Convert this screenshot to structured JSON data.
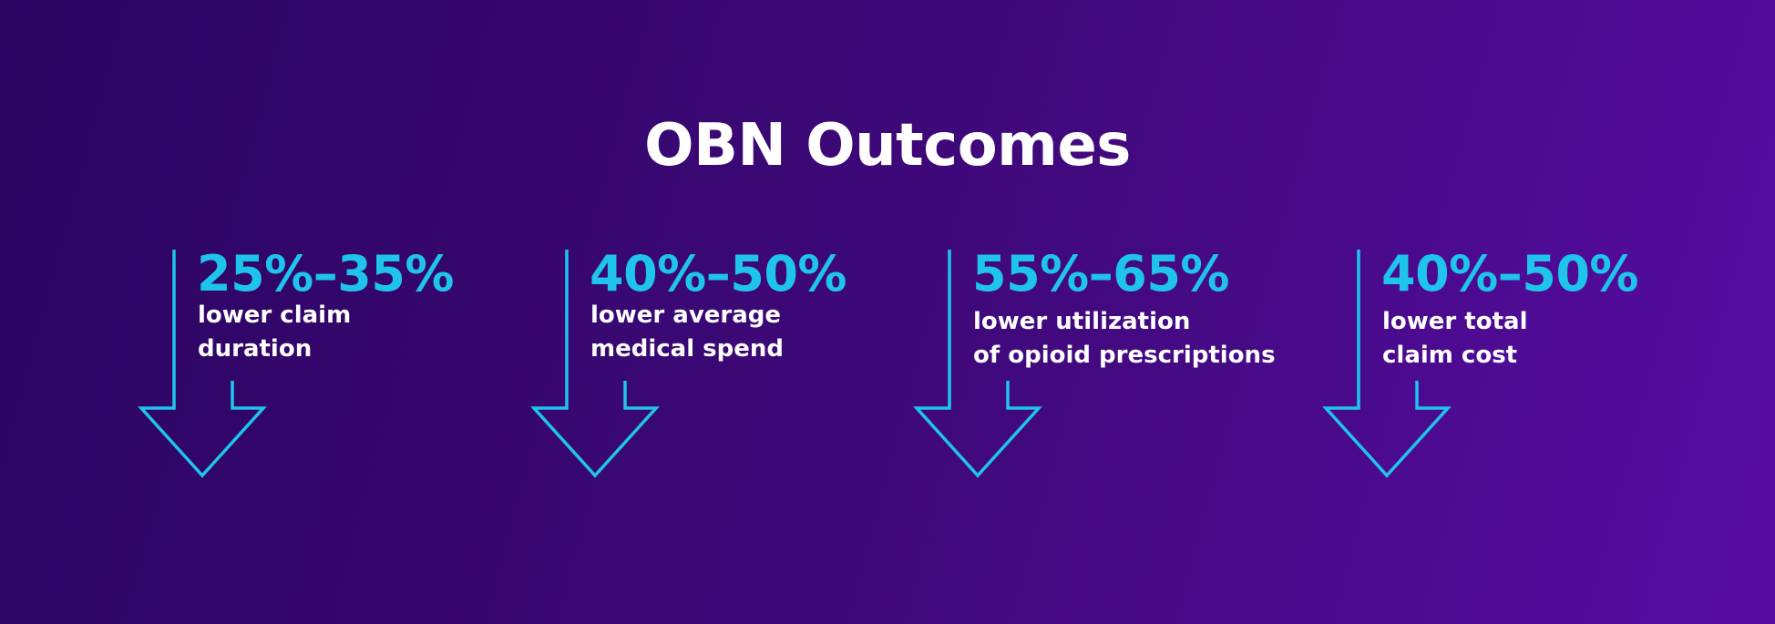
{
  "title": "OBN Outcomes",
  "colors": {
    "accent": "#1fc4ec",
    "text": "#ffffff",
    "background_start": "#2a0461",
    "background_end": "#560ca0"
  },
  "outcomes": [
    {
      "range": "25%–35%",
      "line1": "lower claim",
      "line2": "duration",
      "icon": "down-arrow-icon"
    },
    {
      "range": "40%–50%",
      "line1": "lower average",
      "line2": "medical spend",
      "icon": "down-arrow-icon"
    },
    {
      "range": "55%–65%",
      "line1": "lower utilization",
      "line2": "of opioid prescriptions",
      "icon": "down-arrow-icon"
    },
    {
      "range": "40%–50%",
      "line1": "lower total",
      "line2": "claim cost",
      "icon": "down-arrow-icon"
    }
  ]
}
